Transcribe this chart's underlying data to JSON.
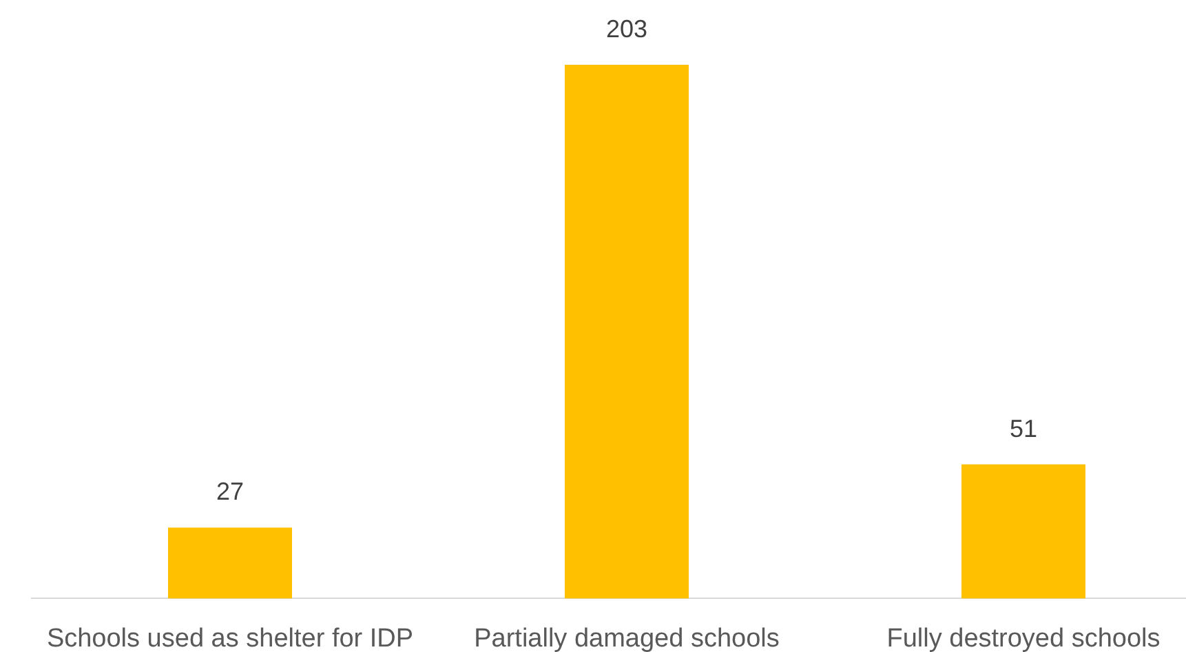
{
  "chart_data": {
    "type": "bar",
    "categories": [
      "Schools used as shelter for IDP",
      "Partially damaged schools",
      "Fully destroyed schools"
    ],
    "values": [
      27,
      203,
      51
    ],
    "color": "#ffc000",
    "data_labels": true
  }
}
